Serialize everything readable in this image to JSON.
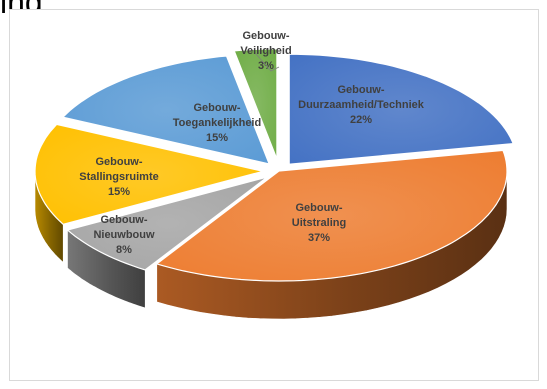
{
  "header": {
    "partial_heading": "ing"
  },
  "chart_data": {
    "type": "pie",
    "style": "3d-exploded",
    "slices": [
      {
        "name": "Gebouw-Duurzaamheid/Techniek",
        "lines": [
          "Gebouw-",
          "Duurzaamheid/Techniek"
        ],
        "percent_label": "22%",
        "value": 22,
        "color": "#4472c4"
      },
      {
        "name": "Gebouw-Uitstraling",
        "lines": [
          "Gebouw-",
          "Uitstraling"
        ],
        "percent_label": "37%",
        "value": 37,
        "color": "#ed7d31"
      },
      {
        "name": "Gebouw-Nieuwbouw",
        "lines": [
          "Gebouw-",
          "Nieuwbouw"
        ],
        "percent_label": "8%",
        "value": 8,
        "color": "#a5a5a5"
      },
      {
        "name": "Gebouw-Stallingsruimte",
        "lines": [
          "Gebouw-",
          "Stallingsruimte"
        ],
        "percent_label": "15%",
        "value": 15,
        "color": "#ffc000"
      },
      {
        "name": "Gebouw-Toegankelijkheid",
        "lines": [
          "Gebouw-",
          "Toegankelijkheid"
        ],
        "percent_label": "15%",
        "value": 15,
        "color": "#5b9bd5"
      },
      {
        "name": "Gebouw-Veiligheid",
        "lines": [
          "Gebouw-",
          "Veiligheid"
        ],
        "percent_label": "3%",
        "value": 3,
        "color": "#70ad47"
      }
    ]
  }
}
